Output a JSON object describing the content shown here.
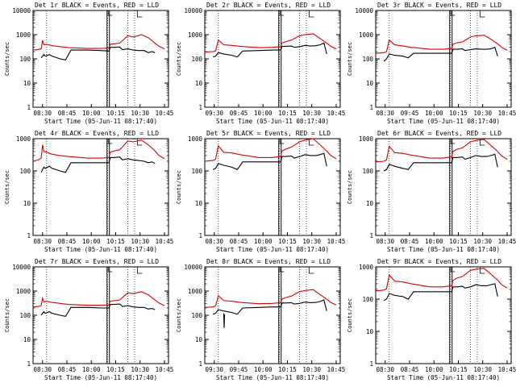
{
  "chart_data": [
    {
      "type": "line",
      "title": "Det 1r BLACK = Events, RED = LLD",
      "xlabel": "Start Time (05-Jun-11 08:17:40)",
      "ylabel": "Counts/sec",
      "x_ticks": [
        "08:30",
        "08:45",
        "10:00",
        "10:15",
        "10:30",
        "10:45"
      ],
      "y_ticks": [
        "1",
        "10",
        "100",
        "1000",
        "10000"
      ],
      "y_scale": "log",
      "ylim": [
        1,
        10000
      ],
      "grid": "dotted vertical lines",
      "series": [
        {
          "name": "LLD",
          "color": "#dd0000",
          "x": [
            0,
            3,
            6,
            7,
            8,
            10,
            14,
            20,
            26,
            40,
            50,
            56,
            57,
            60,
            64,
            70,
            74,
            80,
            85,
            90,
            93,
            97
          ],
          "y": [
            230,
            240,
            260,
            580,
            380,
            400,
            350,
            320,
            290,
            270,
            270,
            280,
            400,
            420,
            450,
            900,
            800,
            1000,
            750,
            450,
            330,
            260
          ]
        },
        {
          "name": "Events",
          "color": "#000000",
          "x": [
            6,
            7,
            8,
            9,
            12,
            14,
            20,
            24,
            28,
            40,
            50,
            56,
            57,
            60,
            64,
            66,
            70,
            74,
            78,
            82,
            85,
            88,
            90
          ],
          "y": [
            110,
            130,
            150,
            130,
            150,
            130,
            100,
            90,
            230,
            230,
            220,
            210,
            300,
            300,
            310,
            240,
            260,
            230,
            220,
            220,
            180,
            200,
            180
          ]
        }
      ]
    },
    {
      "type": "line",
      "title": "Det 2r BLACK = Events, RED = LLD",
      "xlabel": "Start Time (05-Jun-11 08:17:40)",
      "ylabel": "Counts/sec",
      "x_ticks": [
        "09:30",
        "09:45",
        "10:00",
        "10:15",
        "10:30",
        "10:45"
      ],
      "y_ticks": [
        "1",
        "10",
        "100",
        "1000",
        "10000"
      ],
      "y_scale": "log",
      "ylim": [
        1,
        10000
      ],
      "grid": "dotted vertical lines",
      "series": [
        {
          "name": "LLD",
          "color": "#dd0000",
          "x": [
            0,
            6,
            8,
            10,
            14,
            20,
            26,
            40,
            50,
            56,
            57,
            60,
            64,
            70,
            74,
            80,
            85,
            90,
            93,
            97
          ],
          "y": [
            190,
            200,
            210,
            600,
            380,
            360,
            330,
            290,
            300,
            320,
            450,
            520,
            600,
            900,
            1000,
            1100,
            700,
            450,
            330,
            260
          ]
        },
        {
          "name": "Events",
          "color": "#000000",
          "x": [
            6,
            8,
            10,
            14,
            20,
            24,
            28,
            40,
            50,
            56,
            57,
            60,
            64,
            66,
            70,
            74,
            78,
            82,
            85,
            88,
            90
          ],
          "y": [
            120,
            130,
            180,
            160,
            140,
            120,
            210,
            220,
            230,
            230,
            330,
            330,
            340,
            300,
            320,
            360,
            340,
            350,
            380,
            450,
            160
          ]
        }
      ]
    },
    {
      "type": "line",
      "title": "Det 3r BLACK = Events, RED = LLD",
      "xlabel": "Start Time (05-Jun-11 08:17:40)",
      "ylabel": "Counts/sec",
      "x_ticks": [
        "08:30",
        "09:45",
        "10:00",
        "10:15",
        "10:30",
        "10:45"
      ],
      "y_ticks": [
        "1",
        "10",
        "100",
        "1000",
        "10000"
      ],
      "y_scale": "log",
      "ylim": [
        1,
        10000
      ],
      "grid": "dotted vertical lines",
      "series": [
        {
          "name": "LLD",
          "color": "#dd0000",
          "x": [
            0,
            6,
            8,
            10,
            14,
            20,
            26,
            40,
            50,
            56,
            57,
            60,
            64,
            70,
            74,
            80,
            85,
            90,
            93,
            97
          ],
          "y": [
            170,
            180,
            200,
            600,
            380,
            340,
            300,
            250,
            250,
            270,
            400,
            460,
            500,
            800,
            900,
            950,
            650,
            420,
            300,
            230
          ]
        },
        {
          "name": "Events",
          "color": "#000000",
          "x": [
            6,
            8,
            10,
            14,
            20,
            24,
            28,
            40,
            50,
            56,
            57,
            60,
            64,
            66,
            70,
            74,
            78,
            82,
            85,
            88,
            90
          ],
          "y": [
            80,
            100,
            160,
            140,
            130,
            110,
            170,
            170,
            170,
            170,
            250,
            250,
            260,
            220,
            240,
            260,
            250,
            250,
            260,
            300,
            130
          ]
        }
      ]
    },
    {
      "type": "line",
      "title": "Det 4r BLACK = Events, RED = LLD",
      "xlabel": "Start Time (05-Jun-11 08:17:40)",
      "ylabel": "Counts/sec",
      "x_ticks": [
        "08:30",
        "08:45",
        "10:00",
        "10:15",
        "10:30",
        "10:45"
      ],
      "y_ticks": [
        "1",
        "10",
        "100",
        "1000"
      ],
      "y_scale": "log",
      "ylim": [
        1,
        1000
      ],
      "grid": "dotted vertical lines",
      "series": [
        {
          "name": "LLD",
          "color": "#dd0000",
          "x": [
            0,
            4,
            6,
            7,
            8,
            10,
            14,
            20,
            26,
            40,
            50,
            56,
            57,
            60,
            64,
            70,
            74,
            80,
            85,
            90,
            93,
            97
          ],
          "y": [
            200,
            220,
            250,
            650,
            400,
            380,
            330,
            300,
            280,
            250,
            250,
            260,
            380,
            420,
            450,
            850,
            800,
            900,
            650,
            420,
            300,
            240
          ]
        },
        {
          "name": "Events",
          "color": "#000000",
          "x": [
            6,
            7,
            8,
            9,
            12,
            14,
            20,
            24,
            28,
            40,
            50,
            56,
            57,
            60,
            64,
            66,
            70,
            74,
            78,
            82,
            85,
            88,
            90
          ],
          "y": [
            90,
            110,
            130,
            120,
            140,
            120,
            100,
            90,
            180,
            180,
            180,
            180,
            260,
            260,
            270,
            220,
            240,
            220,
            210,
            200,
            180,
            190,
            170
          ]
        }
      ]
    },
    {
      "type": "line",
      "title": "Det 5r BLACK = Events, RED = LLD",
      "xlabel": "Start Time (05-Jun-11 08:17:40)",
      "ylabel": "Counts/sec",
      "x_ticks": [
        "08:30",
        "08:45",
        "10:00",
        "10:15",
        "10:30",
        "10:45"
      ],
      "y_ticks": [
        "1",
        "10",
        "100",
        "1000"
      ],
      "y_scale": "log",
      "ylim": [
        1,
        1000
      ],
      "grid": "dotted vertical lines",
      "series": [
        {
          "name": "LLD",
          "color": "#dd0000",
          "x": [
            0,
            6,
            8,
            10,
            14,
            20,
            26,
            40,
            50,
            56,
            57,
            60,
            64,
            70,
            74,
            80,
            85,
            90,
            93,
            97
          ],
          "y": [
            200,
            210,
            230,
            600,
            380,
            360,
            320,
            260,
            260,
            280,
            420,
            480,
            550,
            800,
            900,
            1000,
            650,
            420,
            300,
            240
          ]
        },
        {
          "name": "Events",
          "color": "#000000",
          "x": [
            6,
            8,
            10,
            14,
            20,
            24,
            28,
            40,
            50,
            56,
            57,
            60,
            64,
            66,
            70,
            74,
            78,
            82,
            85,
            88,
            90
          ],
          "y": [
            110,
            120,
            170,
            150,
            130,
            110,
            190,
            190,
            190,
            190,
            280,
            280,
            290,
            250,
            280,
            320,
            300,
            300,
            320,
            350,
            140
          ]
        }
      ]
    },
    {
      "type": "line",
      "title": "Det 6r BLACK = Events, RED = LLD",
      "xlabel": "Start Time (05-Jun-11 08:17:40)",
      "ylabel": "Counts/sec",
      "x_ticks": [
        "08:30",
        "08:45",
        "10:00",
        "10:15",
        "10:30",
        "10:45"
      ],
      "y_ticks": [
        "1",
        "10",
        "100",
        "1000"
      ],
      "y_scale": "log",
      "ylim": [
        1,
        1000
      ],
      "grid": "dotted vertical lines",
      "series": [
        {
          "name": "LLD",
          "color": "#dd0000",
          "x": [
            0,
            6,
            8,
            10,
            14,
            20,
            26,
            40,
            50,
            56,
            57,
            60,
            64,
            70,
            74,
            80,
            85,
            90,
            93,
            97
          ],
          "y": [
            190,
            200,
            220,
            580,
            370,
            350,
            310,
            250,
            250,
            270,
            400,
            470,
            520,
            800,
            880,
            950,
            620,
            400,
            290,
            230
          ]
        },
        {
          "name": "Events",
          "color": "#000000",
          "x": [
            6,
            8,
            10,
            14,
            20,
            24,
            28,
            40,
            50,
            56,
            57,
            60,
            64,
            66,
            70,
            74,
            78,
            82,
            85,
            88,
            90
          ],
          "y": [
            100,
            110,
            160,
            140,
            120,
            110,
            180,
            180,
            180,
            180,
            260,
            260,
            270,
            230,
            260,
            300,
            280,
            280,
            300,
            330,
            130
          ]
        }
      ]
    },
    {
      "type": "line",
      "title": "Det 7r BLACK = Events, RED = LLD",
      "xlabel": "Start Time (05-Jun-11 08:17:40)",
      "ylabel": "Counts/sec",
      "x_ticks": [
        "08:30",
        "08:45",
        "10:00",
        "10:15",
        "10:30",
        "10:45"
      ],
      "y_ticks": [
        "1",
        "10",
        "100",
        "1000",
        "10000"
      ],
      "y_scale": "log",
      "ylim": [
        1,
        10000
      ],
      "grid": "dotted vertical lines",
      "series": [
        {
          "name": "LLD",
          "color": "#dd0000",
          "x": [
            0,
            4,
            6,
            7,
            8,
            10,
            14,
            20,
            26,
            40,
            50,
            56,
            57,
            60,
            64,
            70,
            74,
            80,
            85,
            90,
            93,
            97
          ],
          "y": [
            220,
            230,
            250,
            500,
            360,
            380,
            340,
            310,
            280,
            260,
            260,
            270,
            380,
            400,
            430,
            850,
            780,
            950,
            700,
            430,
            320,
            250
          ]
        },
        {
          "name": "Events",
          "color": "#000000",
          "x": [
            6,
            7,
            8,
            9,
            12,
            14,
            20,
            24,
            28,
            40,
            50,
            56,
            57,
            60,
            64,
            66,
            70,
            74,
            78,
            82,
            85,
            88,
            90
          ],
          "y": [
            100,
            120,
            140,
            120,
            140,
            120,
            100,
            90,
            210,
            210,
            200,
            200,
            280,
            280,
            290,
            230,
            250,
            220,
            210,
            210,
            180,
            190,
            170
          ]
        }
      ]
    },
    {
      "type": "line",
      "title": "Det 8r BLACK = Events, RED = LLD",
      "xlabel": "Start Time (05-Jun-11 08:17:40)",
      "ylabel": "Counts/sec",
      "x_ticks": [
        "09:30",
        "09:45",
        "10:00",
        "10:15",
        "10:30",
        "10:45"
      ],
      "y_ticks": [
        "1",
        "10",
        "100",
        "1000",
        "10000"
      ],
      "y_scale": "log",
      "ylim": [
        1,
        10000
      ],
      "grid": "dotted vertical lines",
      "series": [
        {
          "name": "LLD",
          "color": "#dd0000",
          "x": [
            0,
            6,
            8,
            10,
            14,
            20,
            26,
            40,
            50,
            56,
            57,
            60,
            64,
            70,
            74,
            80,
            85,
            90,
            93,
            97
          ],
          "y": [
            210,
            220,
            240,
            650,
            400,
            380,
            340,
            300,
            310,
            330,
            470,
            540,
            620,
            950,
            1050,
            1150,
            720,
            460,
            340,
            270
          ]
        },
        {
          "name": "Events",
          "color": "#000000",
          "x": [
            6,
            8,
            10,
            14,
            20,
            24,
            28,
            40,
            50,
            56,
            57,
            60,
            64,
            66,
            70,
            74,
            78,
            82,
            85,
            88,
            90
          ],
          "y": [
            110,
            120,
            170,
            150,
            130,
            110,
            200,
            210,
            220,
            220,
            320,
            320,
            330,
            290,
            310,
            350,
            330,
            340,
            370,
            430,
            150
          ]
        },
        {
          "name": "",
          "color": "#000000",
          "x": [
            14,
            14.3,
            14.6
          ],
          "y": [
            120,
            30,
            110
          ]
        }
      ]
    },
    {
      "type": "line",
      "title": "Det 9r BLACK = Events, RED = LLD",
      "xlabel": "Start Time (05-Jun-11 08:17:40)",
      "ylabel": "Counts/sec",
      "x_ticks": [
        "08:30",
        "08:45",
        "10:00",
        "10:15",
        "10:30",
        "10:45"
      ],
      "y_ticks": [
        "1",
        "10",
        "100",
        "1000"
      ],
      "y_scale": "log",
      "ylim": [
        1,
        1000
      ],
      "grid": "dotted vertical lines",
      "series": [
        {
          "name": "LLD",
          "color": "#dd0000",
          "x": [
            0,
            6,
            8,
            10,
            14,
            20,
            26,
            40,
            50,
            56,
            57,
            60,
            64,
            70,
            74,
            80,
            85,
            90,
            93,
            97
          ],
          "y": [
            180,
            190,
            210,
            560,
            360,
            340,
            300,
            240,
            240,
            260,
            380,
            450,
            500,
            780,
            850,
            900,
            600,
            390,
            280,
            220
          ]
        },
        {
          "name": "Events",
          "color": "#000000",
          "x": [
            6,
            8,
            10,
            14,
            20,
            24,
            28,
            40,
            50,
            56,
            57,
            60,
            64,
            66,
            70,
            74,
            78,
            82,
            85,
            88,
            90
          ],
          "y": [
            90,
            100,
            150,
            130,
            120,
            100,
            170,
            170,
            170,
            170,
            240,
            240,
            250,
            220,
            240,
            280,
            260,
            260,
            280,
            300,
            120
          ]
        }
      ]
    }
  ]
}
